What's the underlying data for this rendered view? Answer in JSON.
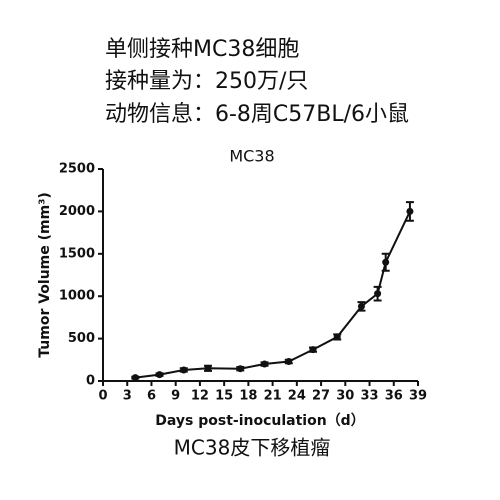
{
  "header_lines": [
    "单侧接种MC38细胞",
    "接种量为：250万/只",
    "动物信息：6-8周C57BL/6小鼠"
  ],
  "chart_data": {
    "type": "line",
    "title": "MC38",
    "x_label": "Days post-inoculation（d）",
    "y_label": "Tumor Volume (mm³)",
    "x": [
      4,
      7,
      10,
      13,
      17,
      20,
      23,
      26,
      29,
      32,
      34,
      35,
      38
    ],
    "values": [
      40,
      75,
      130,
      150,
      145,
      200,
      230,
      370,
      520,
      880,
      1030,
      1400,
      2000
    ],
    "errors": [
      10,
      15,
      20,
      30,
      20,
      20,
      20,
      25,
      30,
      50,
      80,
      100,
      110
    ],
    "color": "#111111",
    "xlim": [
      0,
      39
    ],
    "xticks": [
      0,
      3,
      6,
      9,
      12,
      15,
      18,
      21,
      24,
      27,
      30,
      33,
      36,
      39
    ],
    "ylim": [
      0,
      2500
    ],
    "yticks": [
      0,
      500,
      1000,
      1500,
      2000,
      2500
    ]
  },
  "caption": "MC38皮下移植瘤"
}
